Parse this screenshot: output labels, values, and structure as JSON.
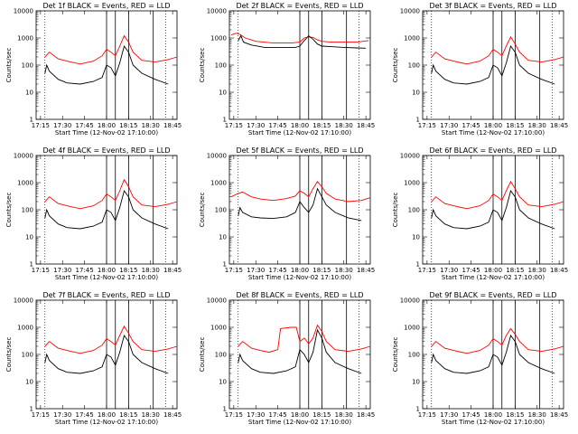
{
  "colors": {
    "events": "#000000",
    "lld": "#ff0000",
    "axes": "#000000",
    "background": "#ffffff"
  },
  "chart_data": [
    {
      "type": "line",
      "title": "Det 1f BLACK = Events, RED = LLD",
      "xlabel": "Start Time (12-Nov-02 17:10:00)",
      "ylabel": "Counts/sec",
      "log_y": true,
      "ylim": [
        1,
        10000
      ],
      "xlim": [
        17.2,
        18.8
      ],
      "xticks": [
        "17:15",
        "17:30",
        "17:45",
        "18:00",
        "18:15",
        "18:30",
        "18:45"
      ],
      "yticks": [
        "1",
        "10",
        "100",
        "1000",
        "10000"
      ],
      "dotted_x": [
        17.3,
        18.67
      ],
      "solid_x": [
        18.0,
        18.1,
        18.25,
        18.53
      ],
      "series": [
        {
          "color": "red",
          "x": [
            17.3,
            17.35,
            17.45,
            17.55,
            17.7,
            17.85,
            17.95,
            18.0,
            18.05,
            18.1,
            18.15,
            18.2,
            18.25,
            18.3,
            18.4,
            18.55,
            18.7,
            18.8
          ],
          "values": [
            200,
            300,
            170,
            140,
            110,
            140,
            220,
            380,
            300,
            220,
            500,
            1200,
            700,
            300,
            150,
            130,
            160,
            200
          ]
        },
        {
          "color": "black",
          "x": [
            17.3,
            17.32,
            17.35,
            17.45,
            17.55,
            17.7,
            17.85,
            17.95,
            18.0,
            18.05,
            18.1,
            18.15,
            18.2,
            18.25,
            18.3,
            18.4,
            18.55,
            18.7
          ],
          "values": [
            50,
            100,
            60,
            30,
            22,
            20,
            25,
            35,
            100,
            80,
            40,
            120,
            500,
            300,
            100,
            50,
            30,
            20
          ]
        }
      ]
    },
    {
      "type": "line",
      "title": "Det 2f BLACK = Events, RED = LLD",
      "xlabel": "Start Time (12-Nov-02 17:10:00)",
      "ylabel": "Counts/sec",
      "log_y": true,
      "ylim": [
        1,
        10000
      ],
      "xlim": [
        17.2,
        18.8
      ],
      "xticks": [
        "17:15",
        "17:30",
        "17:45",
        "18:00",
        "18:15",
        "18:30",
        "18:45"
      ],
      "yticks": [
        "1",
        "10",
        "100",
        "1000",
        "10000"
      ],
      "dotted_x": [
        17.3,
        18.67
      ],
      "solid_x": [
        18.0,
        18.1,
        18.25,
        18.53
      ],
      "series": [
        {
          "color": "red",
          "x": [
            17.22,
            17.28,
            17.32,
            17.38,
            17.5,
            17.7,
            17.9,
            18.0,
            18.05,
            18.1,
            18.15,
            18.2,
            18.25,
            18.35,
            18.5,
            18.65,
            18.78
          ],
          "values": [
            1300,
            1500,
            1350,
            1000,
            750,
            650,
            650,
            700,
            1000,
            1100,
            1050,
            850,
            750,
            700,
            700,
            700,
            800
          ]
        },
        {
          "color": "black",
          "x": [
            17.3,
            17.33,
            17.36,
            17.45,
            17.6,
            17.8,
            17.95,
            18.0,
            18.05,
            18.1,
            18.15,
            18.2,
            18.25,
            18.35,
            18.5,
            18.65,
            18.75
          ],
          "values": [
            800,
            1200,
            700,
            550,
            450,
            450,
            450,
            500,
            800,
            1200,
            900,
            600,
            500,
            480,
            450,
            430,
            420
          ]
        }
      ]
    },
    {
      "type": "line",
      "title": "Det 3f BLACK = Events, RED = LLD",
      "xlabel": "Start Time (12-Nov-02 17:10:00)",
      "ylabel": "Counts/sec",
      "log_y": true,
      "ylim": [
        1,
        10000
      ],
      "xlim": [
        17.2,
        18.8
      ],
      "xticks": [
        "17:15",
        "17:30",
        "17:45",
        "18:00",
        "18:15",
        "18:30",
        "18:45"
      ],
      "yticks": [
        "1",
        "10",
        "100",
        "1000",
        "10000"
      ],
      "dotted_x": [
        17.3,
        18.67
      ],
      "solid_x": [
        18.0,
        18.1,
        18.25,
        18.53
      ],
      "series": [
        {
          "color": "red",
          "x": [
            17.3,
            17.35,
            17.45,
            17.55,
            17.7,
            17.85,
            17.95,
            18.0,
            18.05,
            18.1,
            18.15,
            18.2,
            18.25,
            18.3,
            18.4,
            18.55,
            18.7,
            18.8
          ],
          "values": [
            200,
            300,
            170,
            140,
            110,
            140,
            220,
            380,
            300,
            220,
            500,
            1100,
            600,
            300,
            150,
            130,
            160,
            200
          ]
        },
        {
          "color": "black",
          "x": [
            17.3,
            17.32,
            17.35,
            17.45,
            17.55,
            17.7,
            17.85,
            17.95,
            18.0,
            18.05,
            18.1,
            18.15,
            18.2,
            18.25,
            18.3,
            18.4,
            18.55,
            18.7
          ],
          "values": [
            50,
            100,
            60,
            30,
            22,
            20,
            25,
            35,
            100,
            80,
            40,
            120,
            500,
            300,
            100,
            50,
            30,
            20
          ]
        }
      ]
    },
    {
      "type": "line",
      "title": "Det 4f BLACK = Events, RED = LLD",
      "xlabel": "Start Time (12-Nov-02 17:10:00)",
      "ylabel": "Counts/sec",
      "log_y": true,
      "ylim": [
        1,
        10000
      ],
      "xlim": [
        17.2,
        18.8
      ],
      "xticks": [
        "17:15",
        "17:30",
        "17:45",
        "18:00",
        "18:15",
        "18:30",
        "18:45"
      ],
      "yticks": [
        "1",
        "10",
        "100",
        "1000",
        "10000"
      ],
      "dotted_x": [
        17.3,
        18.67
      ],
      "solid_x": [
        18.0,
        18.1,
        18.25,
        18.53
      ],
      "series": [
        {
          "color": "red",
          "x": [
            17.3,
            17.35,
            17.45,
            17.55,
            17.7,
            17.85,
            17.95,
            18.0,
            18.05,
            18.1,
            18.15,
            18.2,
            18.25,
            18.3,
            18.4,
            18.55,
            18.7,
            18.8
          ],
          "values": [
            200,
            300,
            170,
            140,
            110,
            140,
            220,
            380,
            300,
            220,
            500,
            1300,
            700,
            300,
            150,
            130,
            160,
            200
          ]
        },
        {
          "color": "black",
          "x": [
            17.3,
            17.32,
            17.35,
            17.45,
            17.55,
            17.7,
            17.85,
            17.95,
            18.0,
            18.05,
            18.1,
            18.15,
            18.2,
            18.25,
            18.3,
            18.4,
            18.55,
            18.7
          ],
          "values": [
            50,
            100,
            60,
            30,
            22,
            20,
            25,
            35,
            100,
            80,
            40,
            120,
            500,
            300,
            100,
            50,
            30,
            20
          ]
        }
      ]
    },
    {
      "type": "line",
      "title": "Det 5f BLACK = Events, RED = LLD",
      "xlabel": "Start Time (12-Nov-02 17:10:00)",
      "ylabel": "Counts/sec",
      "log_y": true,
      "ylim": [
        1,
        10000
      ],
      "xlim": [
        17.2,
        18.8
      ],
      "xticks": [
        "17:15",
        "17:30",
        "17:45",
        "18:00",
        "18:15",
        "18:30",
        "18:45"
      ],
      "yticks": [
        "1",
        "10",
        "100",
        "1000",
        "10000"
      ],
      "dotted_x": [
        17.3,
        18.67
      ],
      "solid_x": [
        18.0,
        18.1,
        18.25,
        18.53
      ],
      "series": [
        {
          "color": "red",
          "x": [
            17.22,
            17.3,
            17.35,
            17.45,
            17.55,
            17.7,
            17.85,
            17.95,
            18.0,
            18.05,
            18.1,
            18.15,
            18.2,
            18.25,
            18.3,
            18.4,
            18.55,
            18.7,
            18.8
          ],
          "values": [
            300,
            400,
            450,
            300,
            250,
            220,
            260,
            320,
            500,
            400,
            300,
            600,
            1100,
            700,
            400,
            250,
            200,
            220,
            280
          ]
        },
        {
          "color": "black",
          "x": [
            17.3,
            17.32,
            17.35,
            17.45,
            17.55,
            17.7,
            17.85,
            17.95,
            18.0,
            18.05,
            18.1,
            18.15,
            18.2,
            18.25,
            18.3,
            18.4,
            18.55,
            18.7
          ],
          "values": [
            60,
            120,
            80,
            55,
            50,
            48,
            55,
            80,
            200,
            120,
            80,
            150,
            600,
            300,
            150,
            80,
            50,
            40
          ]
        }
      ]
    },
    {
      "type": "line",
      "title": "Det 6f BLACK = Events, RED = LLD",
      "xlabel": "Start Time (12-Nov-02 17:10:00)",
      "ylabel": "Counts/sec",
      "log_y": true,
      "ylim": [
        1,
        10000
      ],
      "xlim": [
        17.2,
        18.8
      ],
      "xticks": [
        "17:15",
        "17:30",
        "17:45",
        "18:00",
        "18:15",
        "18:30",
        "18:45"
      ],
      "yticks": [
        "1",
        "10",
        "100",
        "1000",
        "10000"
      ],
      "dotted_x": [
        17.3,
        18.67
      ],
      "solid_x": [
        18.0,
        18.1,
        18.25,
        18.53
      ],
      "series": [
        {
          "color": "red",
          "x": [
            17.3,
            17.35,
            17.45,
            17.55,
            17.7,
            17.85,
            17.95,
            18.0,
            18.05,
            18.1,
            18.15,
            18.2,
            18.25,
            18.3,
            18.4,
            18.55,
            18.7,
            18.8
          ],
          "values": [
            200,
            300,
            170,
            140,
            110,
            140,
            220,
            380,
            300,
            220,
            500,
            1100,
            600,
            300,
            150,
            130,
            160,
            200
          ]
        },
        {
          "color": "black",
          "x": [
            17.3,
            17.32,
            17.35,
            17.45,
            17.55,
            17.7,
            17.85,
            17.95,
            18.0,
            18.05,
            18.1,
            18.15,
            18.2,
            18.25,
            18.3,
            18.4,
            18.55,
            18.7
          ],
          "values": [
            50,
            100,
            60,
            30,
            22,
            20,
            25,
            35,
            100,
            80,
            40,
            120,
            500,
            300,
            100,
            50,
            30,
            20
          ]
        }
      ]
    },
    {
      "type": "line",
      "title": "Det 7f BLACK = Events, RED = LLD",
      "xlabel": "Start Time (12-Nov-02 17:10:00)",
      "ylabel": "Counts/sec",
      "log_y": true,
      "ylim": [
        1,
        10000
      ],
      "xlim": [
        17.2,
        18.8
      ],
      "xticks": [
        "17:15",
        "17:30",
        "17:45",
        "18:00",
        "18:15",
        "18:30",
        "18:45"
      ],
      "yticks": [
        "1",
        "10",
        "100",
        "1000",
        "10000"
      ],
      "dotted_x": [
        17.3,
        18.67
      ],
      "solid_x": [
        18.0,
        18.1,
        18.25,
        18.53
      ],
      "series": [
        {
          "color": "red",
          "x": [
            17.3,
            17.35,
            17.45,
            17.55,
            17.7,
            17.85,
            17.95,
            18.0,
            18.05,
            18.1,
            18.15,
            18.2,
            18.25,
            18.3,
            18.4,
            18.55,
            18.7,
            18.8
          ],
          "values": [
            200,
            300,
            170,
            140,
            110,
            140,
            220,
            380,
            300,
            220,
            500,
            1100,
            600,
            300,
            150,
            130,
            160,
            200
          ]
        },
        {
          "color": "black",
          "x": [
            17.3,
            17.32,
            17.35,
            17.45,
            17.55,
            17.7,
            17.85,
            17.95,
            18.0,
            18.05,
            18.1,
            18.15,
            18.2,
            18.25,
            18.3,
            18.4,
            18.55,
            18.7
          ],
          "values": [
            50,
            100,
            60,
            30,
            22,
            20,
            25,
            35,
            100,
            80,
            40,
            120,
            500,
            300,
            100,
            50,
            30,
            20
          ]
        }
      ]
    },
    {
      "type": "line",
      "title": "Det 8f BLACK = Events, RED = LLD",
      "xlabel": "Start Time (12-Nov-02 17:10:00)",
      "ylabel": "Counts/sec",
      "log_y": true,
      "ylim": [
        1,
        10000
      ],
      "xlim": [
        17.2,
        18.8
      ],
      "xticks": [
        "17:15",
        "17:30",
        "17:45",
        "18:00",
        "18:15",
        "18:30",
        "18:45"
      ],
      "yticks": [
        "1",
        "10",
        "100",
        "1000",
        "10000"
      ],
      "dotted_x": [
        17.3,
        18.67
      ],
      "solid_x": [
        18.0,
        18.1,
        18.25,
        18.53
      ],
      "series": [
        {
          "color": "red",
          "x": [
            17.3,
            17.35,
            17.45,
            17.55,
            17.65,
            17.75,
            17.78,
            17.9,
            17.96,
            18.0,
            18.05,
            18.1,
            18.15,
            18.2,
            18.25,
            18.3,
            18.4,
            18.55,
            18.7,
            18.8
          ],
          "values": [
            200,
            300,
            170,
            140,
            120,
            150,
            900,
            1000,
            1000,
            300,
            400,
            250,
            400,
            1200,
            700,
            300,
            150,
            130,
            160,
            200
          ]
        },
        {
          "color": "black",
          "x": [
            17.3,
            17.32,
            17.35,
            17.45,
            17.55,
            17.7,
            17.85,
            17.95,
            18.0,
            18.05,
            18.1,
            18.15,
            18.2,
            18.25,
            18.3,
            18.4,
            18.55,
            18.7
          ],
          "values": [
            50,
            100,
            60,
            30,
            22,
            20,
            25,
            35,
            150,
            100,
            50,
            120,
            800,
            400,
            120,
            50,
            30,
            20
          ]
        }
      ]
    },
    {
      "type": "line",
      "title": "Det 9f BLACK = Events, RED = LLD",
      "xlabel": "Start Time (12-Nov-02 17:10:00)",
      "ylabel": "Counts/sec",
      "log_y": true,
      "ylim": [
        1,
        10000
      ],
      "xlim": [
        17.2,
        18.8
      ],
      "xticks": [
        "17:15",
        "17:30",
        "17:45",
        "18:00",
        "18:15",
        "18:30",
        "18:45"
      ],
      "yticks": [
        "1",
        "10",
        "100",
        "1000",
        "10000"
      ],
      "dotted_x": [
        17.3,
        18.67
      ],
      "solid_x": [
        18.0,
        18.1,
        18.25,
        18.53
      ],
      "series": [
        {
          "color": "red",
          "x": [
            17.3,
            17.35,
            17.45,
            17.55,
            17.7,
            17.85,
            17.95,
            18.0,
            18.05,
            18.1,
            18.15,
            18.2,
            18.25,
            18.3,
            18.4,
            18.55,
            18.7,
            18.8
          ],
          "values": [
            200,
            300,
            170,
            140,
            110,
            140,
            220,
            380,
            300,
            220,
            500,
            900,
            550,
            300,
            150,
            130,
            160,
            200
          ]
        },
        {
          "color": "black",
          "x": [
            17.3,
            17.32,
            17.35,
            17.45,
            17.55,
            17.7,
            17.85,
            17.95,
            18.0,
            18.05,
            18.1,
            18.15,
            18.2,
            18.25,
            18.3,
            18.4,
            18.55,
            18.7
          ],
          "values": [
            50,
            100,
            60,
            30,
            22,
            20,
            25,
            35,
            100,
            80,
            40,
            120,
            500,
            300,
            100,
            50,
            30,
            20
          ]
        }
      ]
    }
  ]
}
